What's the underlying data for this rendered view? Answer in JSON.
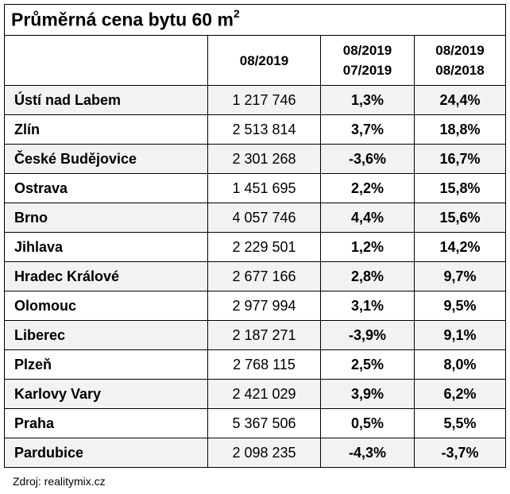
{
  "title": "Průměrná cena bytu 60 m",
  "title_sup": "2",
  "columns": {
    "c2": "08/2019",
    "c3_line1": "08/2019",
    "c3_line2": "07/2019",
    "c4_line1": "08/2019",
    "c4_line2": "08/2018"
  },
  "rows": [
    {
      "city": "Ústí nad Labem",
      "price": "1 217 746",
      "mom": "1,3%",
      "yoy": "24,4%"
    },
    {
      "city": "Zlín",
      "price": "2 513 814",
      "mom": "3,7%",
      "yoy": "18,8%"
    },
    {
      "city": "České Budějovice",
      "price": "2 301 268",
      "mom": "-3,6%",
      "yoy": "16,7%"
    },
    {
      "city": "Ostrava",
      "price": "1 451 695",
      "mom": "2,2%",
      "yoy": "15,8%"
    },
    {
      "city": "Brno",
      "price": "4 057 746",
      "mom": "4,4%",
      "yoy": "15,6%"
    },
    {
      "city": "Jihlava",
      "price": "2 229 501",
      "mom": "1,2%",
      "yoy": "14,2%"
    },
    {
      "city": "Hradec Králové",
      "price": "2 677 166",
      "mom": "2,8%",
      "yoy": "9,7%"
    },
    {
      "city": "Olomouc",
      "price": "2 977 994",
      "mom": "3,1%",
      "yoy": "9,5%"
    },
    {
      "city": "Liberec",
      "price": "2 187 271",
      "mom": "-3,9%",
      "yoy": "9,1%"
    },
    {
      "city": "Plzeň",
      "price": "2 768 115",
      "mom": "2,5%",
      "yoy": "8,0%"
    },
    {
      "city": "Karlovy Vary",
      "price": "2 421 029",
      "mom": "3,9%",
      "yoy": "6,2%"
    },
    {
      "city": "Praha",
      "price": "5 367 506",
      "mom": "0,5%",
      "yoy": "5,5%"
    },
    {
      "city": "Pardubice",
      "price": "2 098 235",
      "mom": "-4,3%",
      "yoy": "-3,7%"
    }
  ],
  "source": "Zdroj: realitymix.cz"
}
